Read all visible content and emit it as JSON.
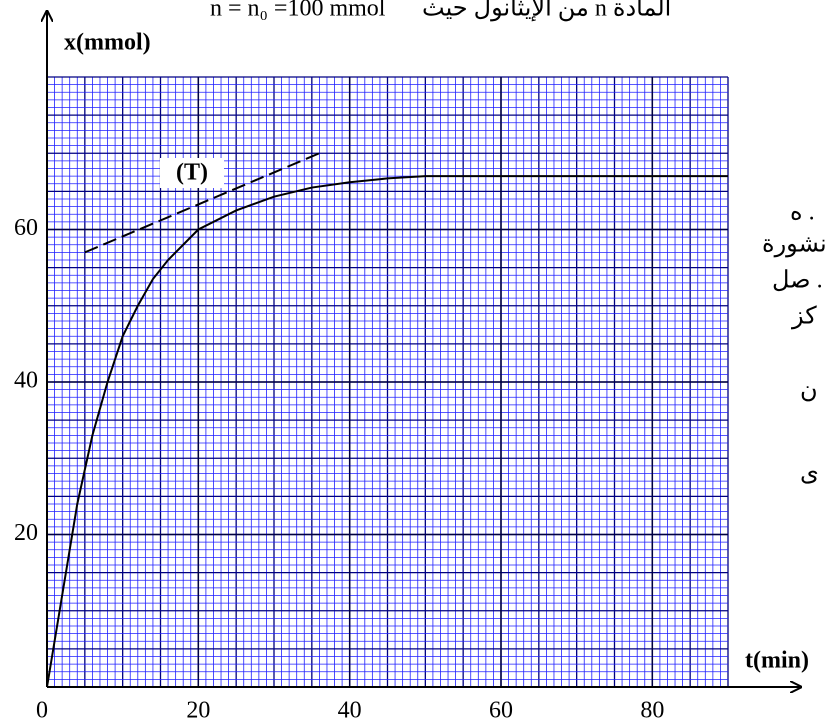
{
  "chart_data": {
    "type": "line",
    "title": "n = n₀ =100 mmol",
    "title_arabic": "المادة n من الإيثانول حيث",
    "x_label": "t(min)",
    "y_label": "x(mmol)",
    "x": [
      0,
      2,
      4,
      6,
      8,
      10,
      12,
      14,
      16,
      18,
      20,
      25,
      30,
      35,
      40,
      45,
      50,
      55,
      60,
      70,
      80,
      90
    ],
    "series": [
      {
        "name": "x(t)",
        "color": "#000000",
        "values": [
          0,
          12,
          24,
          33,
          40,
          46,
          50,
          53.5,
          56,
          58,
          60,
          62.5,
          64.3,
          65.5,
          66.2,
          66.7,
          67,
          67,
          67,
          67,
          67,
          67
        ]
      }
    ],
    "tangent": {
      "label": "(T)",
      "x": [
        5,
        36
      ],
      "values": [
        57,
        70
      ],
      "color": "#000000"
    },
    "xlim": [
      0,
      90
    ],
    "ylim": [
      0,
      80
    ],
    "xticks": [
      0,
      20,
      40,
      60,
      80
    ],
    "yticks": [
      20,
      40,
      60
    ],
    "grid": true,
    "grid_color": "#2020ff",
    "side_text": [
      "ه .",
      "نشورة ،",
      "صل .",
      "كز",
      "ن",
      "ى"
    ]
  }
}
